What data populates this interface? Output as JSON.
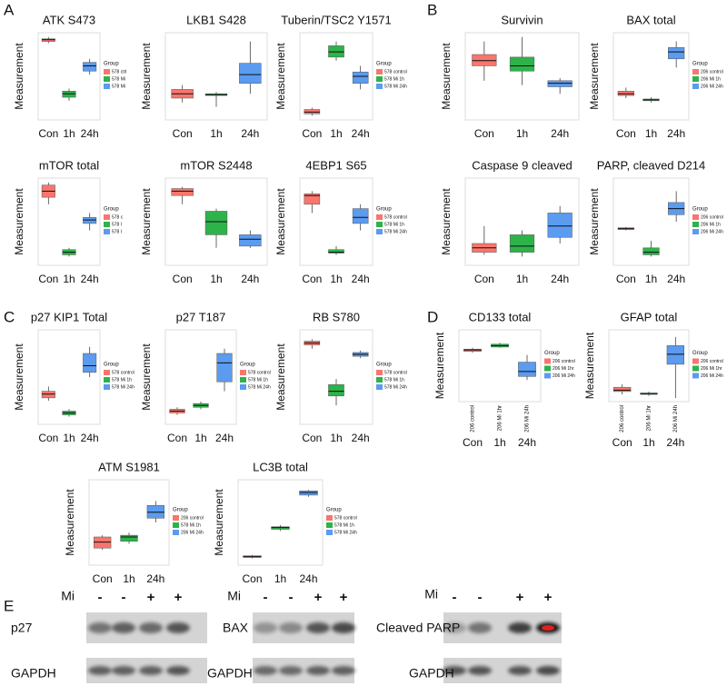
{
  "panel_labels": [
    "A",
    "B",
    "C",
    "D",
    "E"
  ],
  "chart_data": [
    {
      "type": "box",
      "title": "ATK S473",
      "ylabel": "Measurement",
      "categories": [
        "Con",
        "1h",
        "24h"
      ],
      "colors": [
        "#f8766d",
        "#2db34a",
        "#5b9bf0"
      ],
      "ylim": [
        0,
        100
      ],
      "boxes": [
        {
          "min": 88,
          "q1": 90,
          "median": 92,
          "q3": 93,
          "max": 95
        },
        {
          "min": 22,
          "q1": 26,
          "median": 30,
          "q3": 33,
          "max": 36
        },
        {
          "min": 52,
          "q1": 56,
          "median": 62,
          "q3": 66,
          "max": 70
        }
      ],
      "legend_title": "Group",
      "legend": [
        "578 ctrl",
        "578 Mi",
        "578 Mi"
      ]
    },
    {
      "type": "box",
      "title": "LKB1 S428",
      "ylabel": "Measurement",
      "categories": [
        "Con",
        "1h",
        "24h"
      ],
      "colors": [
        "#f8766d",
        "#2db34a",
        "#5b9bf0"
      ],
      "ylim": [
        0,
        100
      ],
      "boxes": [
        {
          "min": 20,
          "q1": 25,
          "median": 30,
          "q3": 35,
          "max": 40
        },
        {
          "min": 15,
          "q1": 28,
          "median": 29,
          "q3": 30,
          "max": 32
        },
        {
          "min": 30,
          "q1": 42,
          "median": 52,
          "q3": 65,
          "max": 90
        }
      ]
    },
    {
      "type": "box",
      "title": "Tuberin/TSC2 Y1571",
      "ylabel": "Measurement",
      "categories": [
        "Con",
        "1h",
        "24h"
      ],
      "colors": [
        "#f8766d",
        "#2db34a",
        "#5b9bf0"
      ],
      "ylim": [
        0,
        100
      ],
      "boxes": [
        {
          "min": 5,
          "q1": 7,
          "median": 9,
          "q3": 12,
          "max": 14
        },
        {
          "min": 68,
          "q1": 72,
          "median": 78,
          "q3": 85,
          "max": 90
        },
        {
          "min": 35,
          "q1": 42,
          "median": 50,
          "q3": 55,
          "max": 62
        }
      ],
      "legend_title": "Group",
      "legend": [
        "578 control",
        "578 Mi 1h",
        "578 Mi 24h"
      ]
    },
    {
      "type": "box",
      "title": "Survivin",
      "ylabel": "Measurement",
      "categories": [
        "Con",
        "1h",
        "24h"
      ],
      "colors": [
        "#f8766d",
        "#2db34a",
        "#5b9bf0"
      ],
      "ylim": [
        0,
        100
      ],
      "boxes": [
        {
          "min": 45,
          "q1": 62,
          "median": 68,
          "q3": 75,
          "max": 90
        },
        {
          "min": 40,
          "q1": 56,
          "median": 62,
          "q3": 72,
          "max": 95
        },
        {
          "min": 30,
          "q1": 38,
          "median": 42,
          "q3": 45,
          "max": 48
        }
      ]
    },
    {
      "type": "box",
      "title": "BAX total",
      "ylabel": "Measurement",
      "categories": [
        "Con",
        "1h",
        "24h"
      ],
      "colors": [
        "#f8766d",
        "#2db34a",
        "#5b9bf0"
      ],
      "ylim": [
        0,
        100
      ],
      "boxes": [
        {
          "min": 25,
          "q1": 28,
          "median": 30,
          "q3": 33,
          "max": 37
        },
        {
          "min": 20,
          "q1": 22,
          "median": 23,
          "q3": 24,
          "max": 26
        },
        {
          "min": 60,
          "q1": 70,
          "median": 78,
          "q3": 83,
          "max": 90
        }
      ],
      "legend_title": "Group",
      "legend": [
        "206 control",
        "206 Mi 1h",
        "206 Mi 24h"
      ]
    },
    {
      "type": "box",
      "title": "mTOR total",
      "ylabel": "Measurement",
      "categories": [
        "Con",
        "1h",
        "24h"
      ],
      "colors": [
        "#f8766d",
        "#2db34a",
        "#5b9bf0"
      ],
      "ylim": [
        0,
        100
      ],
      "boxes": [
        {
          "min": 70,
          "q1": 78,
          "median": 85,
          "q3": 92,
          "max": 95
        },
        {
          "min": 10,
          "q1": 12,
          "median": 15,
          "q3": 18,
          "max": 20
        },
        {
          "min": 40,
          "q1": 48,
          "median": 52,
          "q3": 55,
          "max": 60
        }
      ],
      "legend_title": "Group",
      "legend": [
        "578 c",
        "578 l",
        "578 l"
      ]
    },
    {
      "type": "box",
      "title": "mTOR S2448",
      "ylabel": "Measurement",
      "categories": [
        "Con",
        "1h",
        "24h"
      ],
      "colors": [
        "#f8766d",
        "#2db34a",
        "#5b9bf0"
      ],
      "ylim": [
        0,
        100
      ],
      "boxes": [
        {
          "min": 70,
          "q1": 80,
          "median": 85,
          "q3": 88,
          "max": 90
        },
        {
          "min": 20,
          "q1": 35,
          "median": 50,
          "q3": 62,
          "max": 65
        },
        {
          "min": 20,
          "q1": 22,
          "median": 30,
          "q3": 35,
          "max": 40
        }
      ]
    },
    {
      "type": "box",
      "title": "4EBP1 S65",
      "ylabel": "Measurement",
      "categories": [
        "Con",
        "1h",
        "24h"
      ],
      "colors": [
        "#f8766d",
        "#2db34a",
        "#5b9bf0"
      ],
      "ylim": [
        0,
        100
      ],
      "boxes": [
        {
          "min": 60,
          "q1": 70,
          "median": 80,
          "q3": 82,
          "max": 85
        },
        {
          "min": 12,
          "q1": 14,
          "median": 15,
          "q3": 18,
          "max": 22
        },
        {
          "min": 40,
          "q1": 48,
          "median": 55,
          "q3": 65,
          "max": 70
        }
      ],
      "legend_title": "Group",
      "legend": [
        "578 control",
        "578 Mi 1h",
        "578 Mi 24h"
      ]
    },
    {
      "type": "box",
      "title": "Caspase 9 cleaved",
      "ylabel": "Measurement",
      "categories": [
        "Con",
        "1h",
        "24h"
      ],
      "colors": [
        "#f8766d",
        "#2db34a",
        "#5b9bf0"
      ],
      "ylim": [
        0,
        100
      ],
      "boxes": [
        {
          "min": 12,
          "q1": 15,
          "median": 20,
          "q3": 25,
          "max": 45
        },
        {
          "min": 10,
          "q1": 15,
          "median": 22,
          "q3": 35,
          "max": 40
        },
        {
          "min": 25,
          "q1": 32,
          "median": 45,
          "q3": 60,
          "max": 68
        }
      ]
    },
    {
      "type": "box",
      "title": "PARP, cleaved D214",
      "ylabel": "Measurement",
      "categories": [
        "Con",
        "1h",
        "24h"
      ],
      "colors": [
        "#f8766d",
        "#2db34a",
        "#5b9bf0"
      ],
      "ylim": [
        0,
        100
      ],
      "boxes": [
        {
          "min": 40,
          "q1": 41,
          "median": 42,
          "q3": 43,
          "max": 44
        },
        {
          "min": 10,
          "q1": 12,
          "median": 15,
          "q3": 20,
          "max": 28
        },
        {
          "min": 50,
          "q1": 58,
          "median": 65,
          "q3": 72,
          "max": 85
        }
      ],
      "legend_title": "Group",
      "legend": [
        "206 control",
        "206 Mi 1h",
        "206 Mi 24h"
      ]
    },
    {
      "type": "box",
      "title": "p27 KIP1 Total",
      "ylabel": "Measurement",
      "categories": [
        "Con",
        "1h",
        "24h"
      ],
      "colors": [
        "#f8766d",
        "#2db34a",
        "#5b9bf0"
      ],
      "ylim": [
        0,
        100
      ],
      "boxes": [
        {
          "min": 25,
          "q1": 28,
          "median": 32,
          "q3": 35,
          "max": 40
        },
        {
          "min": 8,
          "q1": 10,
          "median": 12,
          "q3": 14,
          "max": 16
        },
        {
          "min": 50,
          "q1": 55,
          "median": 62,
          "q3": 75,
          "max": 82
        }
      ],
      "legend_title": "Group",
      "legend": [
        "578 control",
        "578 Mi 1h",
        "578 Mi 24h"
      ]
    },
    {
      "type": "box",
      "title": "p27 T187",
      "ylabel": "Measurement",
      "categories": [
        "Con",
        "1h",
        "24h"
      ],
      "colors": [
        "#f8766d",
        "#2db34a",
        "#5b9bf0"
      ],
      "ylim": [
        0,
        100
      ],
      "boxes": [
        {
          "min": 10,
          "q1": 12,
          "median": 14,
          "q3": 16,
          "max": 18
        },
        {
          "min": 16,
          "q1": 18,
          "median": 20,
          "q3": 22,
          "max": 24
        },
        {
          "min": 35,
          "q1": 45,
          "median": 65,
          "q3": 75,
          "max": 80
        }
      ],
      "legend_title": "Group",
      "legend": [
        "578 control",
        "578 Mi 1h",
        "578 Mi 24h"
      ]
    },
    {
      "type": "box",
      "title": "RB S780",
      "ylabel": "Measurement",
      "categories": [
        "Con",
        "1h",
        "24h"
      ],
      "colors": [
        "#f8766d",
        "#2db34a",
        "#5b9bf0"
      ],
      "ylim": [
        0,
        100
      ],
      "boxes": [
        {
          "min": 80,
          "q1": 84,
          "median": 86,
          "q3": 88,
          "max": 90
        },
        {
          "min": 20,
          "q1": 30,
          "median": 35,
          "q3": 42,
          "max": 48
        },
        {
          "min": 70,
          "q1": 72,
          "median": 74,
          "q3": 76,
          "max": 78
        }
      ],
      "legend_title": "Group",
      "legend": [
        "578 control",
        "578 Mi 1h",
        "578 Mi 24h"
      ]
    },
    {
      "type": "box",
      "title": "CD133 total",
      "ylabel": "Measurement",
      "categories": [
        "Con",
        "1h",
        "24h"
      ],
      "sublabels": [
        "206 control",
        "206 Mi 1hr",
        "206 Mi 24h"
      ],
      "colors": [
        "#f8766d",
        "#2db34a",
        "#5b9bf0"
      ],
      "ylim": [
        0,
        100
      ],
      "boxes": [
        {
          "min": 68,
          "q1": 70,
          "median": 72,
          "q3": 73,
          "max": 75
        },
        {
          "min": 75,
          "q1": 76,
          "median": 78,
          "q3": 80,
          "max": 82
        },
        {
          "min": 30,
          "q1": 35,
          "median": 42,
          "q3": 55,
          "max": 65
        }
      ],
      "legend_title": "Group",
      "legend": [
        "206 control",
        "206 Mi 1hr",
        "206 Mi 24h"
      ]
    },
    {
      "type": "box",
      "title": "GFAP total",
      "ylabel": "Measurement",
      "categories": [
        "Con",
        "1h",
        "24h"
      ],
      "sublabels": [
        "206 control",
        "206 Mi 1hr",
        "206 Mi 24h"
      ],
      "colors": [
        "#f8766d",
        "#2db34a",
        "#5b9bf0"
      ],
      "ylim": [
        0,
        100
      ],
      "boxes": [
        {
          "min": 10,
          "q1": 14,
          "median": 16,
          "q3": 20,
          "max": 24
        },
        {
          "min": 8,
          "q1": 10,
          "median": 11,
          "q3": 12,
          "max": 14
        },
        {
          "min": 5,
          "q1": 52,
          "median": 66,
          "q3": 78,
          "max": 90
        }
      ],
      "legend_title": "Group",
      "legend": [
        "206 control",
        "206 Mi 1hr",
        "206 Mi 24h"
      ]
    },
    {
      "type": "box",
      "title": "ATM S1981",
      "ylabel": "Measurement",
      "categories": [
        "Con",
        "1h",
        "24h"
      ],
      "colors": [
        "#f8766d",
        "#2db34a",
        "#5b9bf0"
      ],
      "ylim": [
        0,
        100
      ],
      "boxes": [
        {
          "min": 18,
          "q1": 20,
          "median": 27,
          "q3": 33,
          "max": 35
        },
        {
          "min": 25,
          "q1": 28,
          "median": 33,
          "q3": 35,
          "max": 38
        },
        {
          "min": 50,
          "q1": 55,
          "median": 62,
          "q3": 70,
          "max": 75
        }
      ],
      "legend_title": "Group",
      "legend": [
        "206 control",
        "578 Mi 1h",
        "206 Mi 24h"
      ]
    },
    {
      "type": "box",
      "title": "LC3B total",
      "ylabel": "Measurement",
      "categories": [
        "Con",
        "1h",
        "24h"
      ],
      "colors": [
        "#f8766d",
        "#2db34a",
        "#5b9bf0"
      ],
      "ylim": [
        0,
        100
      ],
      "boxes": [
        {
          "min": 8,
          "q1": 9,
          "median": 10,
          "q3": 11,
          "max": 12
        },
        {
          "min": 40,
          "q1": 42,
          "median": 44,
          "q3": 45,
          "max": 47
        },
        {
          "min": 80,
          "q1": 82,
          "median": 85,
          "q3": 87,
          "max": 88
        }
      ],
      "legend_title": "Group",
      "legend": [
        "578 control",
        "578 Mi 1h",
        "578 Mi 24h"
      ]
    }
  ],
  "blots": [
    {
      "treatment": "Mi",
      "signs": [
        "-",
        "-",
        "+",
        "+"
      ],
      "rows": [
        "p27",
        "GAPDH"
      ]
    },
    {
      "treatment": "Mi",
      "signs": [
        "-",
        "-",
        "+",
        "+"
      ],
      "rows": [
        "BAX",
        "GAPDH"
      ]
    },
    {
      "treatment": "Mi",
      "signs": [
        "-",
        "-",
        "+",
        "+"
      ],
      "rows": [
        "Cleaved PARP",
        "GAPDH"
      ]
    }
  ]
}
